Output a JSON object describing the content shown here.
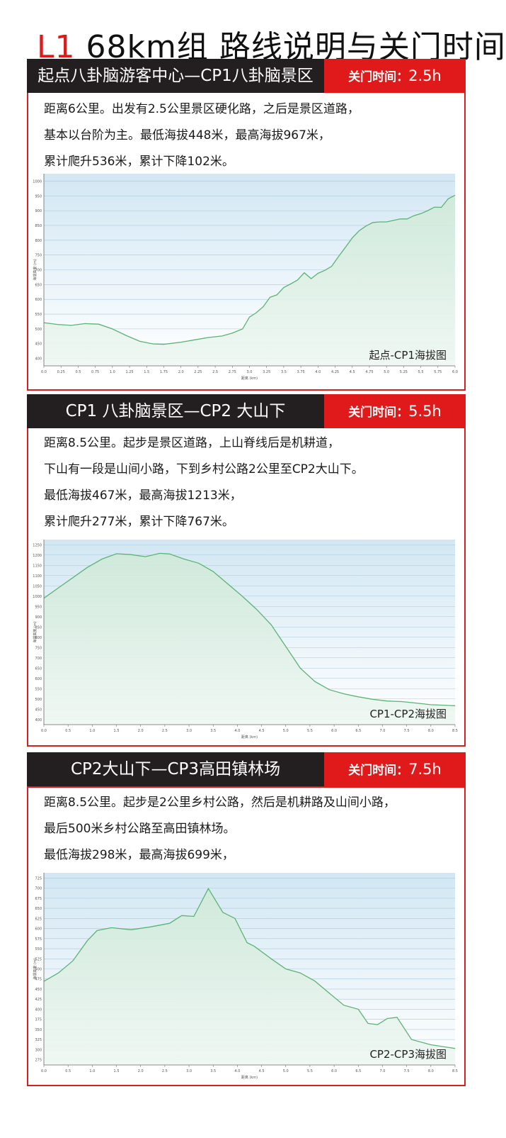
{
  "title": {
    "prefix": "L1",
    "main": "68km组 路线说明与关门时间"
  },
  "close_label": "关门时间：",
  "sections": [
    {
      "heading": "起点八卦脑游客中心—CP1八卦脑景区",
      "close_time": "2.5h",
      "lines": [
        "距离6公里。出发有2.5公里景区硬化路，之后是景区道路，",
        "基本以台阶为主。最低海拔448米，最高海拔967米，",
        "累计爬升536米，累计下降102米。"
      ]
    },
    {
      "heading": "CP1 八卦脑景区—CP2 大山下",
      "close_time": "5.5h",
      "lines": [
        "距离8.5公里。起步是景区道路，上山脊线后是机耕道，",
        "下山有一段是山间小路，下到乡村公路2公里至CP2大山下。",
        "最低海拔467米，最高海拔1213米，",
        "累计爬升277米，累计下降767米。"
      ]
    },
    {
      "heading": "CP2大山下—CP3高田镇林场",
      "close_time": "7.5h",
      "lines": [
        "距离8.5公里。起步是2公里乡村公路，然后是机耕路及山间小路，",
        "最后500米乡村公路至高田镇林场。",
        "最低海拔298米，最高海拔699米，"
      ]
    }
  ],
  "chart_data": [
    {
      "type": "area",
      "label": "起点-CP1海拔图",
      "xlabel": "距离 (km)",
      "ylabel": "海拔高度 (m)",
      "xlim": [
        0,
        6.0
      ],
      "ylim": [
        375,
        1025
      ],
      "xticks": [
        "0.0",
        "0.25",
        "0.5",
        "0.75",
        "1.0",
        "1.25",
        "1.5",
        "1.75",
        "2.0",
        "2.25",
        "2.5",
        "2.75",
        "3.0",
        "3.25",
        "3.5",
        "3.75",
        "4.0",
        "4.25",
        "4.5",
        "4.75",
        "5.0",
        "5.25",
        "5.5",
        "5.75",
        "6.0"
      ],
      "xtick_values": [
        0,
        0.25,
        0.5,
        0.75,
        1,
        1.25,
        1.5,
        1.75,
        2,
        2.25,
        2.5,
        2.75,
        3,
        3.25,
        3.5,
        3.75,
        4,
        4.25,
        4.5,
        4.75,
        5,
        5.25,
        5.5,
        5.75,
        6
      ],
      "yticks": [
        400,
        450,
        500,
        550,
        600,
        650,
        700,
        750,
        800,
        850,
        900,
        950,
        1000
      ],
      "x": [
        0,
        0.2,
        0.4,
        0.6,
        0.8,
        1.0,
        1.2,
        1.4,
        1.6,
        1.75,
        2.0,
        2.2,
        2.4,
        2.6,
        2.75,
        2.9,
        3.0,
        3.1,
        3.2,
        3.3,
        3.4,
        3.5,
        3.6,
        3.7,
        3.8,
        3.9,
        4.0,
        4.1,
        4.2,
        4.3,
        4.4,
        4.5,
        4.6,
        4.7,
        4.8,
        4.9,
        5.0,
        5.1,
        5.2,
        5.3,
        5.4,
        5.5,
        5.6,
        5.7,
        5.8,
        5.9,
        6.0
      ],
      "y": [
        521,
        515,
        512,
        518,
        516,
        500,
        478,
        458,
        449,
        448,
        455,
        463,
        471,
        476,
        486,
        500,
        540,
        555,
        575,
        607,
        615,
        640,
        652,
        665,
        690,
        670,
        688,
        698,
        712,
        745,
        776,
        808,
        832,
        848,
        860,
        862,
        862,
        867,
        872,
        872,
        883,
        890,
        900,
        912,
        911,
        940,
        952
      ]
    },
    {
      "type": "area",
      "label": "CP1-CP2海拔图",
      "xlabel": "距离 (km)",
      "ylabel": "海拔高度 (m)",
      "xlim": [
        0,
        8.5
      ],
      "ylim": [
        375,
        1275
      ],
      "xticks": [
        "0.0",
        "0.5",
        "1.0",
        "1.5",
        "2.0",
        "2.5",
        "3.0",
        "3.5",
        "4.0",
        "4.5",
        "5.0",
        "5.5",
        "6.0",
        "6.5",
        "7.0",
        "7.5",
        "8.0",
        "8.5"
      ],
      "xtick_values": [
        0,
        0.5,
        1,
        1.5,
        2,
        2.5,
        3,
        3.5,
        4,
        4.5,
        5,
        5.5,
        6,
        6.5,
        7,
        7.5,
        8,
        8.5
      ],
      "yticks": [
        400,
        450,
        500,
        550,
        600,
        650,
        700,
        750,
        800,
        850,
        900,
        950,
        1000,
        1050,
        1100,
        1150,
        1200,
        1250
      ],
      "x": [
        0,
        0.3,
        0.6,
        0.9,
        1.2,
        1.5,
        1.8,
        2.1,
        2.4,
        2.6,
        2.9,
        3.2,
        3.5,
        3.8,
        4.1,
        4.4,
        4.7,
        5.0,
        5.3,
        5.6,
        5.9,
        6.2,
        6.5,
        6.8,
        7.1,
        7.4,
        7.7,
        8.0,
        8.5
      ],
      "y": [
        990,
        1040,
        1090,
        1140,
        1180,
        1206,
        1202,
        1192,
        1208,
        1205,
        1180,
        1160,
        1120,
        1060,
        1000,
        935,
        860,
        755,
        650,
        585,
        545,
        525,
        510,
        498,
        490,
        487,
        480,
        472,
        467
      ]
    },
    {
      "type": "area",
      "label": "CP2-CP3海拔图",
      "xlabel": "距离 (km)",
      "ylabel": "海拔高度 (m)",
      "xlim": [
        0,
        8.5
      ],
      "ylim": [
        262,
        738
      ],
      "xticks": [
        "0.0",
        "0.5",
        "1.0",
        "1.5",
        "2.0",
        "2.5",
        "3.0",
        "3.5",
        "4.0",
        "4.5",
        "5.0",
        "5.5",
        "6.0",
        "6.5",
        "7.0",
        "7.5",
        "8.0",
        "8.5"
      ],
      "xtick_values": [
        0,
        0.5,
        1,
        1.5,
        2,
        2.5,
        3,
        3.5,
        4,
        4.5,
        5,
        5.5,
        6,
        6.5,
        7,
        7.5,
        8,
        8.5
      ],
      "yticks": [
        275,
        300,
        325,
        350,
        375,
        400,
        425,
        450,
        475,
        500,
        525,
        550,
        575,
        600,
        625,
        650,
        675,
        700,
        725
      ],
      "x": [
        0,
        0.3,
        0.6,
        0.9,
        1.1,
        1.4,
        1.8,
        2.2,
        2.6,
        2.85,
        3.1,
        3.4,
        3.7,
        3.95,
        4.2,
        4.35,
        4.7,
        5.0,
        5.3,
        5.6,
        5.9,
        6.2,
        6.5,
        6.7,
        6.9,
        7.1,
        7.3,
        7.6,
        8.0,
        8.5
      ],
      "y": [
        469,
        490,
        520,
        570,
        595,
        602,
        597,
        604,
        613,
        632,
        630,
        699,
        640,
        625,
        565,
        556,
        525,
        500,
        490,
        470,
        440,
        410,
        400,
        365,
        362,
        377,
        380,
        325,
        312,
        303
      ]
    }
  ]
}
